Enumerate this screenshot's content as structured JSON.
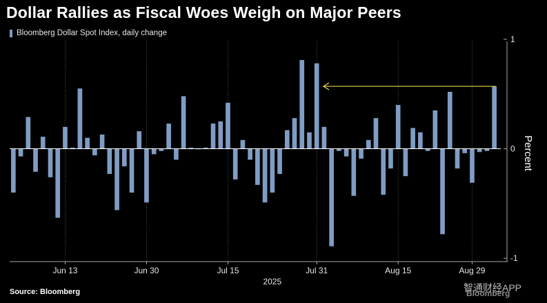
{
  "header": {
    "title": "Dollar Rallies as Fiscal Woes Weigh on Major Peers"
  },
  "source": "Source: Bloomberg",
  "watermark": {
    "line1": "智通财经APP",
    "line2": "Bloomberg"
  },
  "colors": {
    "bar": "#7f9dc4",
    "arrow": "#e8d44d",
    "grid": "#555555",
    "axis": "#aaaaaa"
  },
  "chart_data": {
    "type": "bar",
    "title": "Dollar Rallies as Fiscal Woes Weigh on Major Peers",
    "legend": [
      "Bloomberg Dollar Spot Index, daily change"
    ],
    "xlabel": "2025",
    "ylabel": "Percent",
    "ylim": [
      -1.03,
      0.98
    ],
    "yticks": [
      1,
      0,
      -1
    ],
    "xticks": [
      {
        "label": "Jun 13",
        "index": 7
      },
      {
        "label": "Jun 30",
        "index": 18
      },
      {
        "label": "Jul 15",
        "index": 29
      },
      {
        "label": "Jul 31",
        "index": 41
      },
      {
        "label": "Aug 15",
        "index": 52
      },
      {
        "label": "Aug 29",
        "index": 62
      }
    ],
    "values": [
      -0.4,
      -0.07,
      0.29,
      -0.21,
      0.11,
      -0.26,
      -0.63,
      0.2,
      0.01,
      0.55,
      0.1,
      -0.06,
      0.13,
      -0.23,
      -0.56,
      -0.16,
      -0.4,
      0.16,
      -0.49,
      -0.05,
      -0.02,
      0.23,
      -0.1,
      0.48,
      0.01,
      0.0,
      0.01,
      0.23,
      0.25,
      0.42,
      -0.28,
      0.08,
      -0.1,
      -0.33,
      -0.49,
      -0.4,
      -0.23,
      0.17,
      0.28,
      0.81,
      0.15,
      0.78,
      0.2,
      -0.89,
      -0.02,
      -0.07,
      -0.43,
      -0.09,
      0.08,
      0.28,
      -0.42,
      -0.18,
      0.4,
      -0.25,
      0.19,
      0.15,
      -0.02,
      0.35,
      -0.78,
      0.52,
      -0.18,
      -0.04,
      -0.31,
      -0.03,
      -0.02,
      0.57
    ],
    "annotation": {
      "type": "arrow",
      "from_index": 65,
      "to_index": 42,
      "y": 0.57
    }
  }
}
